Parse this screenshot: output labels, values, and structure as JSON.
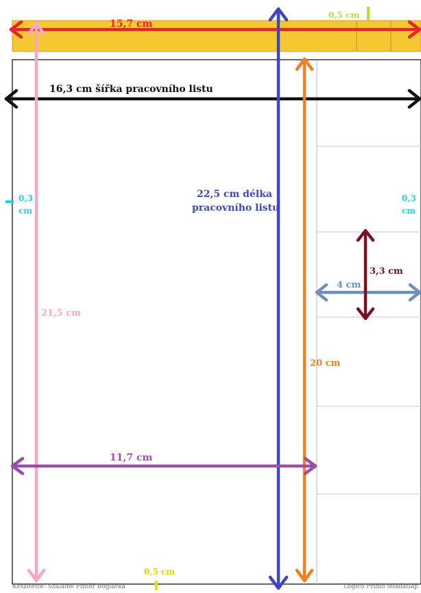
{
  "labels": {
    "top_strip_width": "15,7 cm",
    "strip_cell": "0,5 cm",
    "sheet_width": "16,3 cm šířka pracovního listu",
    "sheet_height_line1": "22,5 cm délka",
    "sheet_height_line2": "pracovního listu",
    "margin_left_value": "0,3",
    "margin_left_unit": "cm",
    "margin_right_value": "0,3",
    "margin_right_unit": "cm",
    "left_height": "21,5 cm",
    "card_width": "4 cm",
    "card_height": "3,3 cm",
    "column_height": "20 cm",
    "main_width": "11,7 cm",
    "bottom_margin": "0,5 cm"
  },
  "footer": {
    "left": "Készítette: Szalainé Pintér Boglárka",
    "right": "Logico Primo feladatlap"
  },
  "colors": {
    "strip": "#f5c832",
    "red": "#e8242a",
    "black": "#111111",
    "blue": "#3f46b8",
    "orange": "#f28020",
    "pink": "#f7a8c4",
    "purple": "#9b4ea8",
    "steel": "#6f90b8",
    "maroon": "#7b0f24",
    "cyan": "#22d3e6",
    "lime": "#bfdc2c",
    "yellow": "#f0e40a"
  }
}
